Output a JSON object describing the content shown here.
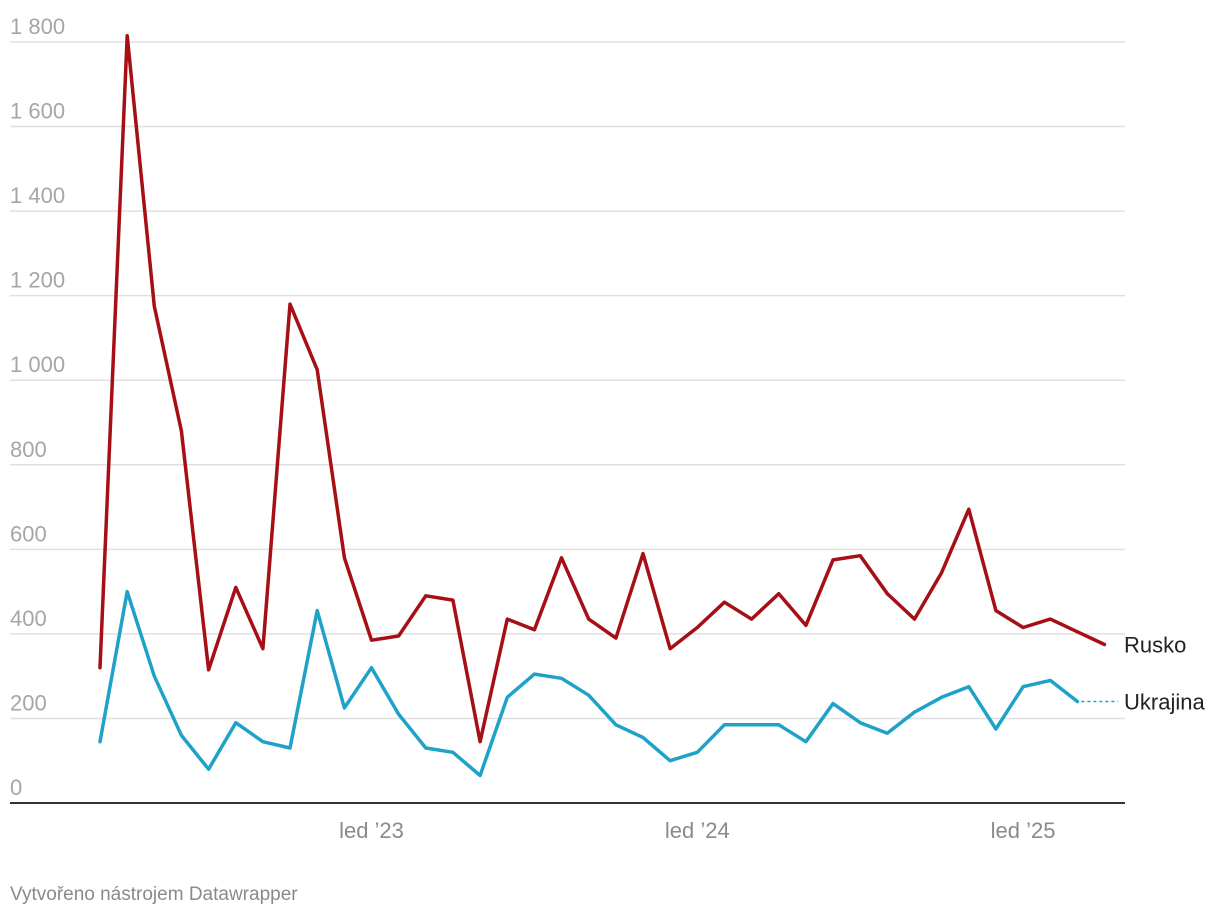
{
  "chart_data": {
    "type": "line",
    "y_ticks": [
      0,
      200,
      400,
      600,
      800,
      1000,
      1200,
      1400,
      1600,
      1800
    ],
    "y_tick_labels": [
      "0",
      "200",
      "400",
      "600",
      "800",
      "1 000",
      "1 200",
      "1 400",
      "1 600",
      "1 800"
    ],
    "ylim": [
      0,
      1800
    ],
    "x_tick_labels": [
      {
        "label": "led ’23",
        "month": 10
      },
      {
        "label": "led ’24",
        "month": 22
      },
      {
        "label": "led ’25",
        "month": 34
      }
    ],
    "grid": true,
    "series": [
      {
        "name": "Rusko",
        "color": "#a50f15",
        "values": [
          320,
          1815,
          1175,
          880,
          315,
          510,
          365,
          1180,
          1025,
          580,
          385,
          395,
          490,
          480,
          145,
          435,
          410,
          580,
          435,
          390,
          590,
          365,
          415,
          475,
          435,
          495,
          420,
          575,
          585,
          495,
          435,
          545,
          695,
          455,
          415,
          435,
          405,
          375
        ]
      },
      {
        "name": "Ukrajina",
        "color": "#1fa2c9",
        "values": [
          145,
          500,
          300,
          160,
          80,
          190,
          145,
          130,
          455,
          225,
          320,
          210,
          130,
          120,
          65,
          250,
          305,
          295,
          255,
          185,
          155,
          100,
          120,
          185,
          185,
          185,
          145,
          235,
          190,
          165,
          215,
          250,
          275,
          175,
          275,
          290,
          240
        ]
      }
    ]
  },
  "footer": "Vytvořeno nástrojem Datawrapper"
}
